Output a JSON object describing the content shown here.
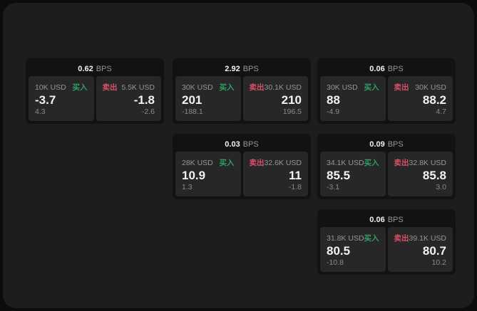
{
  "units": {
    "bps": "BPS"
  },
  "labels": {
    "buy": "买入",
    "sell": "卖出"
  },
  "colors": {
    "buy": "#2f9e63",
    "sell": "#d9506a",
    "panel": "#1d1d1d",
    "card": "#121212",
    "tile": "#272727"
  },
  "cards": [
    {
      "bps": "0.62",
      "buy": {
        "amount": "10K USD",
        "value": "-3.7",
        "delta": "4.3"
      },
      "sell": {
        "amount": "5.5K USD",
        "value": "-1.8",
        "delta": "-2.6"
      }
    },
    {
      "bps": "2.92",
      "buy": {
        "amount": "30K USD",
        "value": "201",
        "delta": "-188.1"
      },
      "sell": {
        "amount": "30.1K USD",
        "value": "210",
        "delta": "196.5"
      }
    },
    {
      "bps": "0.06",
      "buy": {
        "amount": "30K USD",
        "value": "88",
        "delta": "-4.9"
      },
      "sell": {
        "amount": "30K USD",
        "value": "88.2",
        "delta": "4.7"
      }
    },
    {
      "bps": "0.03",
      "buy": {
        "amount": "28K USD",
        "value": "10.9",
        "delta": "1.3"
      },
      "sell": {
        "amount": "32.6K USD",
        "value": "11",
        "delta": "-1.8"
      }
    },
    {
      "bps": "0.09",
      "buy": {
        "amount": "34.1K USD",
        "value": "85.5",
        "delta": "-3.1"
      },
      "sell": {
        "amount": "32.8K USD",
        "value": "85.8",
        "delta": "3.0"
      }
    },
    {
      "bps": "0.06",
      "buy": {
        "amount": "31.8K USD",
        "value": "80.5",
        "delta": "-10.8"
      },
      "sell": {
        "amount": "39.1K USD",
        "value": "80.7",
        "delta": "10.2"
      }
    }
  ]
}
